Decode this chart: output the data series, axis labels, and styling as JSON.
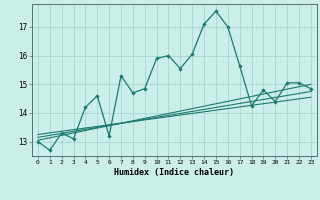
{
  "title": "",
  "xlabel": "Humidex (Indice chaleur)",
  "background_color": "#cceee8",
  "line_color": "#1a7a6e",
  "grid_color": "#aad4ce",
  "xlim": [
    -0.5,
    23.5
  ],
  "ylim": [
    12.5,
    17.8
  ],
  "yticks": [
    13,
    14,
    15,
    16,
    17
  ],
  "xticks": [
    0,
    1,
    2,
    3,
    4,
    5,
    6,
    7,
    8,
    9,
    10,
    11,
    12,
    13,
    14,
    15,
    16,
    17,
    18,
    19,
    20,
    21,
    22,
    23
  ],
  "main_series": [
    [
      0,
      13.0
    ],
    [
      1,
      12.7
    ],
    [
      2,
      13.3
    ],
    [
      3,
      13.1
    ],
    [
      4,
      14.2
    ],
    [
      5,
      14.6
    ],
    [
      6,
      13.2
    ],
    [
      7,
      15.3
    ],
    [
      8,
      14.7
    ],
    [
      9,
      14.85
    ],
    [
      10,
      15.9
    ],
    [
      11,
      16.0
    ],
    [
      12,
      15.55
    ],
    [
      13,
      16.05
    ],
    [
      14,
      17.1
    ],
    [
      15,
      17.55
    ],
    [
      16,
      17.0
    ],
    [
      17,
      15.65
    ],
    [
      18,
      14.25
    ],
    [
      19,
      14.8
    ],
    [
      20,
      14.4
    ],
    [
      21,
      15.05
    ],
    [
      22,
      15.05
    ],
    [
      23,
      14.85
    ]
  ],
  "trend_lines": [
    [
      [
        0,
        13.05
      ],
      [
        23,
        15.0
      ]
    ],
    [
      [
        0,
        13.15
      ],
      [
        23,
        14.75
      ]
    ],
    [
      [
        0,
        13.25
      ],
      [
        23,
        14.55
      ]
    ]
  ]
}
